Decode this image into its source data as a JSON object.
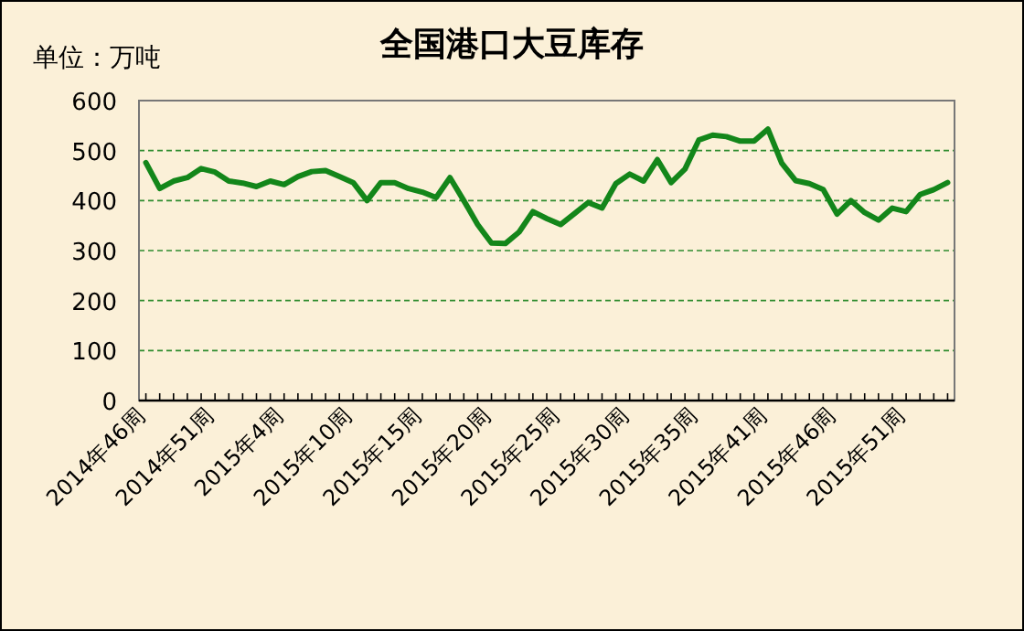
{
  "chart_data": {
    "type": "line",
    "title": "全国港口大豆库存",
    "ylabel": "单位：万吨",
    "categories": [
      "2014年46周",
      null,
      null,
      null,
      null,
      "2014年51周",
      null,
      null,
      null,
      null,
      "2015年4周",
      null,
      null,
      null,
      null,
      "2015年10周",
      null,
      null,
      null,
      null,
      "2015年15周",
      null,
      null,
      null,
      null,
      "2015年20周",
      null,
      null,
      null,
      null,
      "2015年25周",
      null,
      null,
      null,
      null,
      "2015年30周",
      null,
      null,
      null,
      null,
      "2015年35周",
      null,
      null,
      null,
      null,
      "2015年41周",
      null,
      null,
      null,
      null,
      "2015年46周",
      null,
      null,
      null,
      null,
      "2015年51周",
      null,
      null,
      null
    ],
    "values": [
      476,
      424,
      439,
      446,
      464,
      457,
      439,
      435,
      428,
      439,
      432,
      448,
      458,
      460,
      448,
      436,
      400,
      436,
      436,
      424,
      417,
      406,
      446,
      400,
      352,
      315,
      314,
      337,
      378,
      364,
      352,
      374,
      396,
      385,
      434,
      453,
      439,
      482,
      436,
      463,
      521,
      531,
      528,
      519,
      519,
      543,
      475,
      440,
      434,
      422,
      373,
      400,
      376,
      361,
      385,
      378,
      412,
      422,
      436
    ],
    "color": "#13861a",
    "ylim": [
      0,
      600
    ],
    "yticks": [
      0,
      100,
      200,
      300,
      400,
      500,
      600
    ],
    "grid": "y"
  }
}
